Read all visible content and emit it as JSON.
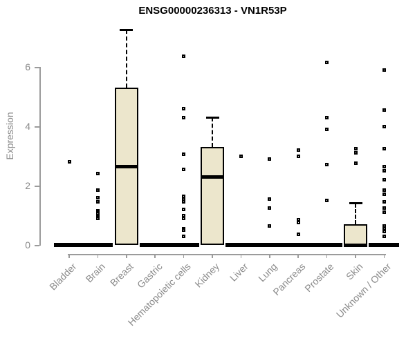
{
  "page": {
    "background": "#ffffff"
  },
  "chart_data": {
    "type": "boxplot",
    "title": "ENSG00000236313 - VN1R53P",
    "xlabel": "",
    "ylabel": "Expression",
    "yticks": [
      0,
      2,
      4,
      6
    ],
    "ylim": [
      -0.2,
      7.4
    ],
    "grid": false,
    "legend": false,
    "categories": [
      "Bladder",
      "Brain",
      "Breast",
      "Gastric",
      "Hematopoietic cells",
      "Kidney",
      "Liver",
      "Lung",
      "Pancreas",
      "Prostate",
      "Skin",
      "Unknown / Other"
    ],
    "series": [
      {
        "name": "Bladder",
        "q1": 0,
        "median": 0,
        "q3": 0,
        "whisker_low": 0,
        "whisker_high": 0,
        "outliers": [
          2.8
        ]
      },
      {
        "name": "Brain",
        "q1": 0,
        "median": 0,
        "q3": 0,
        "whisker_low": 0,
        "whisker_high": 0,
        "outliers": [
          2.4,
          1.85,
          1.6,
          1.45,
          1.15,
          1.1,
          1.05,
          1.0,
          0.95,
          0.9
        ]
      },
      {
        "name": "Breast",
        "q1": 0,
        "median": 2.65,
        "q3": 5.3,
        "whisker_low": 0,
        "whisker_high": 7.25,
        "outliers": []
      },
      {
        "name": "Gastric",
        "q1": 0,
        "median": 0,
        "q3": 0,
        "whisker_low": 0,
        "whisker_high": 0,
        "outliers": []
      },
      {
        "name": "Hematopoietic cells",
        "q1": 0,
        "median": 0,
        "q3": 0,
        "whisker_low": 0,
        "whisker_high": 0,
        "outliers": [
          6.35,
          4.6,
          4.3,
          3.05,
          2.55,
          1.65,
          1.55,
          1.45,
          1.2,
          1.0,
          0.9,
          0.55,
          0.5,
          0.3
        ]
      },
      {
        "name": "Kidney",
        "q1": 0,
        "median": 2.3,
        "q3": 3.3,
        "whisker_low": 0,
        "whisker_high": 4.3,
        "outliers": []
      },
      {
        "name": "Liver",
        "q1": 0,
        "median": 0,
        "q3": 0,
        "whisker_low": 0,
        "whisker_high": 0,
        "outliers": [
          3.0
        ]
      },
      {
        "name": "Lung",
        "q1": 0,
        "median": 0,
        "q3": 0,
        "whisker_low": 0,
        "whisker_high": 0,
        "outliers": [
          2.9,
          1.55,
          1.25,
          0.65
        ]
      },
      {
        "name": "Pancreas",
        "q1": 0,
        "median": 0,
        "q3": 0,
        "whisker_low": 0,
        "whisker_high": 0,
        "outliers": [
          3.2,
          3.0,
          0.85,
          0.75,
          0.35
        ]
      },
      {
        "name": "Prostate",
        "q1": 0,
        "median": 0,
        "q3": 0,
        "whisker_low": 0,
        "whisker_high": 0,
        "outliers": [
          6.15,
          4.3,
          3.9,
          2.7,
          1.5
        ]
      },
      {
        "name": "Skin",
        "q1": 0,
        "median": 0,
        "q3": 0.7,
        "whisker_low": 0,
        "whisker_high": 1.4,
        "outliers": [
          3.25,
          3.1,
          2.75
        ]
      },
      {
        "name": "Unknown / Other",
        "q1": 0,
        "median": 0,
        "q3": 0,
        "whisker_low": 0,
        "whisker_high": 0,
        "outliers": [
          5.9,
          4.55,
          4.0,
          3.25,
          2.65,
          2.5,
          2.2,
          1.85,
          1.7,
          1.45,
          1.25,
          1.1,
          0.65,
          0.55,
          0.45,
          0.3
        ]
      }
    ],
    "colors": {
      "box_fill": "#ece6cc",
      "box_border": "#000000",
      "median": "#000000",
      "outlier": "#000000",
      "axis": "#9b9b9b",
      "tick_text": "#8a8a8a",
      "title": "#000000",
      "background": "#ffffff"
    }
  }
}
